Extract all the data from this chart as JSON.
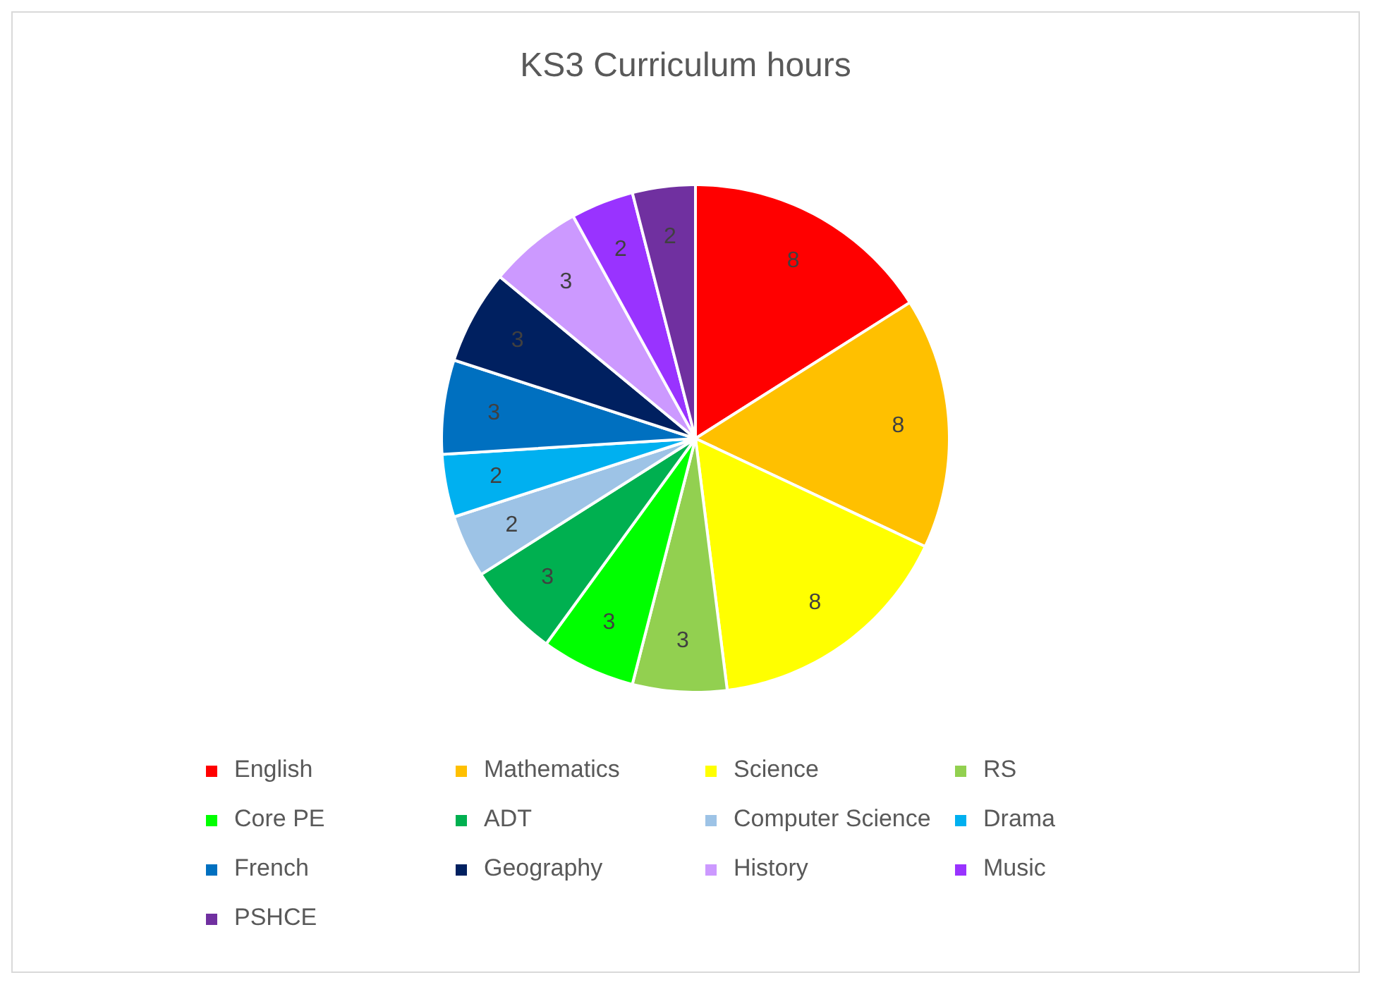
{
  "chart_data": {
    "type": "pie",
    "title": "KS3 Curriculum hours",
    "categories": [
      "English",
      "Mathematics",
      "Science",
      "RS",
      "Core PE",
      "ADT",
      "Computer Science",
      "Drama",
      "French",
      "Geography",
      "History",
      "Music",
      "PSHCE"
    ],
    "values": [
      8,
      8,
      8,
      3,
      3,
      3,
      2,
      2,
      3,
      3,
      3,
      2,
      2
    ],
    "colors": [
      "#ff0000",
      "#ffc000",
      "#ffff00",
      "#92d050",
      "#00ff00",
      "#00b050",
      "#9dc3e6",
      "#00b0f0",
      "#0070c0",
      "#002060",
      "#cc99ff",
      "#9933ff",
      "#7030a0"
    ],
    "data_labels": true,
    "legend": "bottom"
  }
}
